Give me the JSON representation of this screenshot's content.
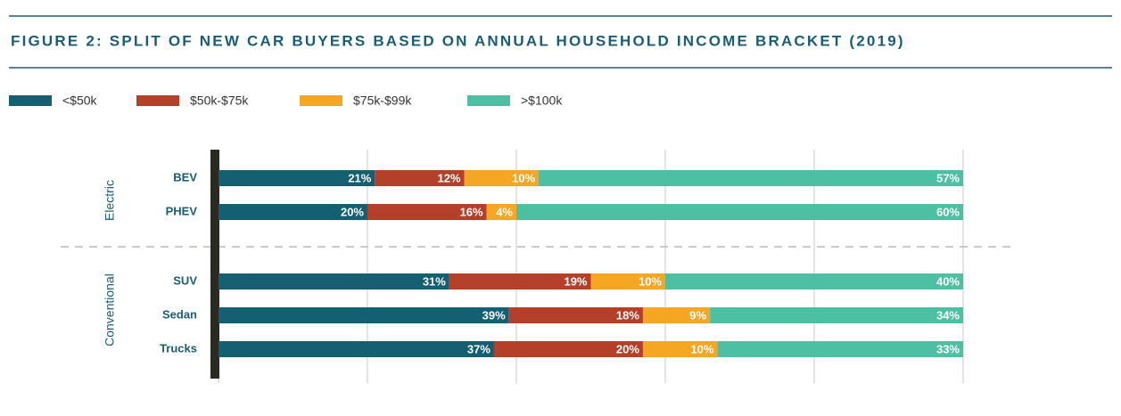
{
  "chart_data": {
    "type": "bar",
    "orientation": "horizontal",
    "stacked": true,
    "title": "FIGURE 2: SPLIT OF NEW CAR BUYERS BASED ON ANNUAL HOUSEHOLD INCOME BRACKET (2019)",
    "categories": [
      "BEV",
      "PHEV",
      "SUV",
      "Sedan",
      "Trucks"
    ],
    "groups": [
      {
        "label": "Electric",
        "members": [
          "BEV",
          "PHEV"
        ]
      },
      {
        "label": "Conventional",
        "members": [
          "SUV",
          "Sedan",
          "Trucks"
        ]
      }
    ],
    "series": [
      {
        "name": "<$50k",
        "color": "#155f73",
        "values": [
          21,
          20,
          31,
          39,
          37
        ],
        "value_labels": [
          "21%",
          "20%",
          "31%",
          "39%",
          "37%"
        ]
      },
      {
        "name": "$50k-$75k",
        "color": "#b5402a",
        "values": [
          12,
          16,
          19,
          18,
          20
        ],
        "value_labels": [
          "12%",
          "16%",
          "19%",
          "18%",
          "20%"
        ]
      },
      {
        "name": "$75k-$99k",
        "color": "#f5a623",
        "values": [
          10,
          4,
          10,
          9,
          10
        ],
        "value_labels": [
          "10%",
          "4%",
          "10%",
          "9%",
          "10%"
        ]
      },
      {
        "name": ">$100k",
        "color": "#4dbfa3",
        "values": [
          57,
          60,
          40,
          34,
          33
        ],
        "value_labels": [
          "57%",
          "60%",
          "40%",
          "34%",
          "33%"
        ]
      }
    ],
    "xlim": [
      0,
      100
    ],
    "xticks": [
      0,
      20,
      40,
      60,
      80,
      100
    ],
    "grid": true
  }
}
